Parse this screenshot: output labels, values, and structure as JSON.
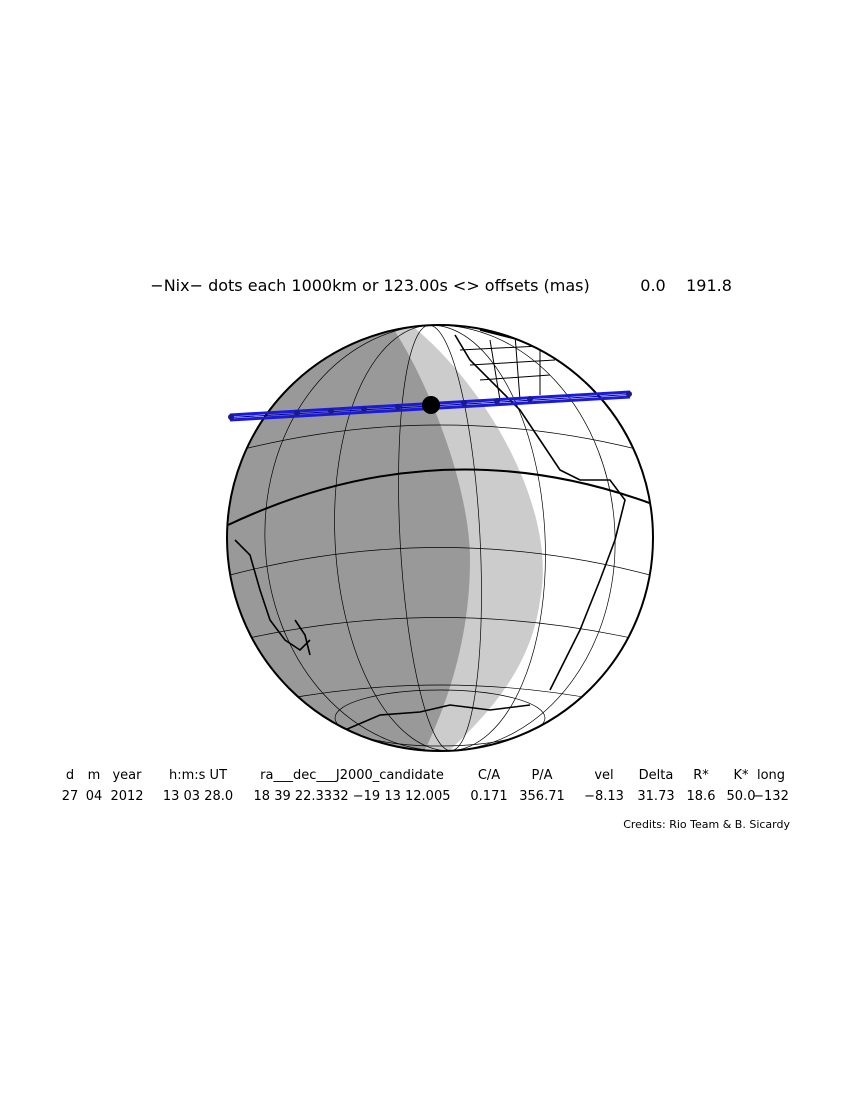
{
  "header": {
    "title": "−Nix− dots each 1000km or 123.00s <> offsets (mas)",
    "offsets": [
      "0.0",
      "191.8"
    ]
  },
  "table": {
    "labels": [
      "d",
      "m",
      "year",
      "h:m:s UT",
      "ra___dec___J2000_candidate",
      "C/A",
      "P/A",
      "vel",
      "Delta",
      "R*",
      "K*",
      "long"
    ],
    "values": [
      "27",
      "04",
      "2012",
      "13 03 28.0",
      "18 39 22.3332 −19 13 12.005",
      "0.171",
      "356.71",
      "−8.13",
      "31.73",
      "18.6",
      "50.0",
      "−132"
    ]
  },
  "credits": "Credits: Rio Team & B. Sicardy"
}
